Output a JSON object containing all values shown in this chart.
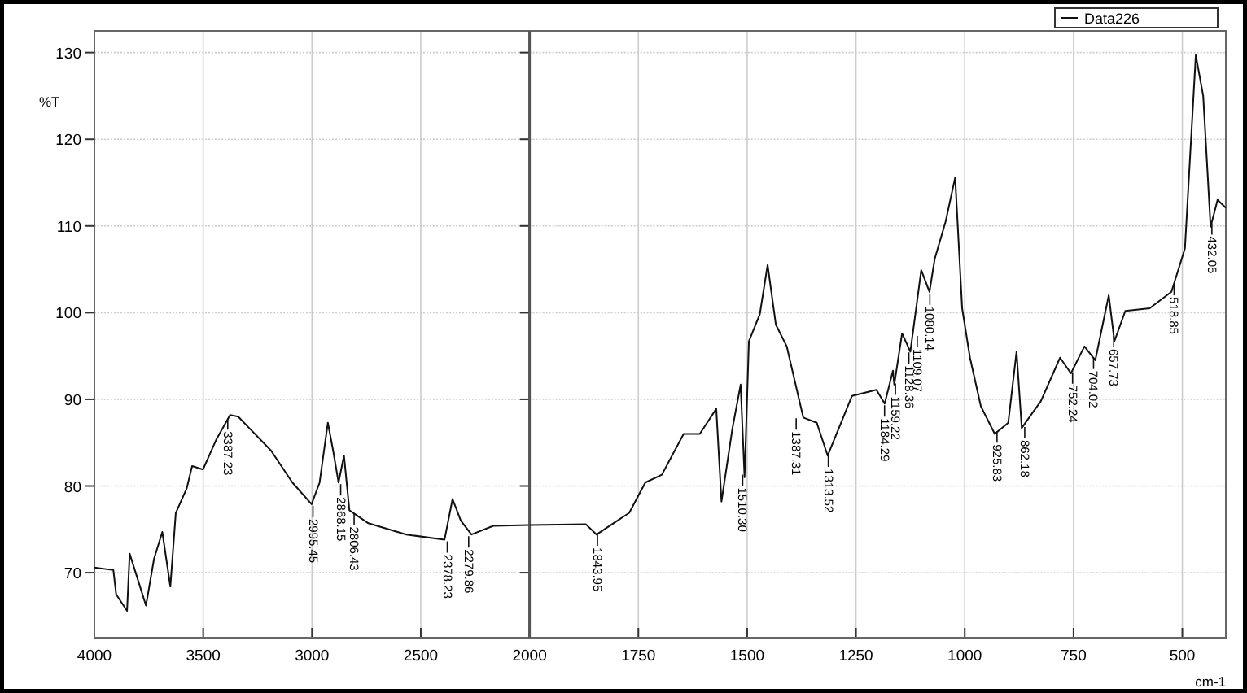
{
  "chart_data": [
    {
      "type": "line",
      "ylabel": "%T",
      "xlim": [
        4000,
        2000
      ],
      "ylim": [
        62.5,
        132.5
      ],
      "xticks": [
        4000,
        3500,
        3000,
        2500
      ],
      "yticks": [
        70,
        80,
        90,
        100,
        110,
        120,
        130
      ],
      "grid": true,
      "line_style": "solid",
      "marker": "none",
      "series": [
        {
          "color": "#111111",
          "x": [
            4000,
            3913,
            3900,
            3850,
            3838,
            3763,
            3726,
            3688,
            3651,
            3626,
            3576,
            3551,
            3501,
            3439,
            3376,
            3339,
            3289,
            3189,
            3090,
            3002,
            2965,
            2927,
            2903,
            2878,
            2853,
            2828,
            2741,
            2566,
            2391,
            2354,
            2316,
            2267,
            2167,
            2000
          ],
          "values": [
            70.6,
            70.3,
            67.5,
            65.6,
            72.2,
            66.2,
            71.6,
            74.7,
            68.4,
            76.9,
            79.7,
            82.3,
            81.9,
            85.4,
            88.2,
            88,
            86.7,
            84.1,
            80.4,
            77.9,
            80.4,
            87.3,
            84.1,
            80.4,
            83.5,
            77.2,
            75.7,
            74.4,
            73.8,
            78.5,
            76,
            74.4,
            75.4,
            75.5
          ]
        }
      ],
      "annotations": [
        {
          "text": "3387.23",
          "x": 3387.23,
          "y": 88
        },
        {
          "text": "2995.45",
          "x": 2995.45,
          "y": 77.9
        },
        {
          "text": "2868.15",
          "x": 2868.15,
          "y": 80.4
        },
        {
          "text": "2806.43",
          "x": 2806.43,
          "y": 77
        },
        {
          "text": "2378.23",
          "x": 2378.23,
          "y": 73.8
        },
        {
          "text": "2279.86",
          "x": 2279.86,
          "y": 74.4
        }
      ]
    },
    {
      "type": "line",
      "xlabel": "cm-1",
      "xlim": [
        2000,
        400
      ],
      "ylim": [
        62.5,
        132.5
      ],
      "xticks": [
        2000,
        1750,
        1500,
        1250,
        1000,
        750,
        500
      ],
      "yticks": [
        70,
        80,
        90,
        100,
        110,
        120,
        130
      ],
      "tick_labels": "x",
      "grid": true,
      "legend": "top right",
      "line_style": "solid",
      "marker": "none",
      "series": [
        {
          "name": "Data226",
          "color": "#111111",
          "x": [
            2000,
            1871,
            1846,
            1771,
            1734,
            1696,
            1646,
            1609,
            1571,
            1559,
            1534,
            1515,
            1506,
            1496,
            1471,
            1453,
            1434,
            1409,
            1371,
            1340,
            1315,
            1259,
            1203,
            1184,
            1165,
            1162,
            1144,
            1125,
            1100,
            1081,
            1069,
            1044,
            1022,
            1006,
            988,
            963,
            931,
            900,
            881,
            869,
            825,
            781,
            756,
            725,
            700,
            669,
            656,
            631,
            575,
            525,
            494,
            469,
            452,
            435,
            419,
            400
          ],
          "values": [
            75.5,
            75.6,
            74.4,
            76.9,
            80.4,
            81.3,
            86,
            86,
            88.9,
            78.2,
            86.6,
            91.7,
            81,
            96.7,
            99.8,
            105.5,
            98.6,
            96.1,
            87.9,
            87.3,
            83.5,
            90.4,
            91.1,
            89.5,
            93.3,
            91.7,
            97.6,
            95.5,
            104.9,
            102.4,
            106.2,
            110.5,
            115.6,
            100.5,
            94.8,
            89.2,
            86,
            87.3,
            95.5,
            86.7,
            89.8,
            94.8,
            93,
            96.1,
            94.5,
            102,
            96.7,
            100.2,
            100.5,
            102.4,
            107.4,
            129.7,
            125,
            109.9,
            113,
            112.1
          ]
        }
      ],
      "annotations": [
        {
          "text": "1843.95",
          "x": 1843.95,
          "y": 74.6
        },
        {
          "text": "1510.30",
          "x": 1510.3,
          "y": 81.5
        },
        {
          "text": "1387.31",
          "x": 1387.31,
          "y": 88
        },
        {
          "text": "1313.52",
          "x": 1313.52,
          "y": 83.7
        },
        {
          "text": "1184.29",
          "x": 1184.29,
          "y": 89.5
        },
        {
          "text": "1159.22",
          "x": 1159.22,
          "y": 92
        },
        {
          "text": "1128.36",
          "x": 1128.36,
          "y": 95.6
        },
        {
          "text": "1109.07",
          "x": 1109.07,
          "y": 97.5
        },
        {
          "text": "1080.14",
          "x": 1080.14,
          "y": 102.4
        },
        {
          "text": "925.83",
          "x": 925.83,
          "y": 86.5
        },
        {
          "text": "862.18",
          "x": 862.18,
          "y": 87
        },
        {
          "text": "752.24",
          "x": 752.24,
          "y": 93.3
        },
        {
          "text": "704.02",
          "x": 704.02,
          "y": 95
        },
        {
          "text": "657.73",
          "x": 657.73,
          "y": 97.5
        },
        {
          "text": "518.85",
          "x": 518.85,
          "y": 103.5
        },
        {
          "text": "432.05",
          "x": 432.05,
          "y": 110.5
        }
      ]
    }
  ]
}
